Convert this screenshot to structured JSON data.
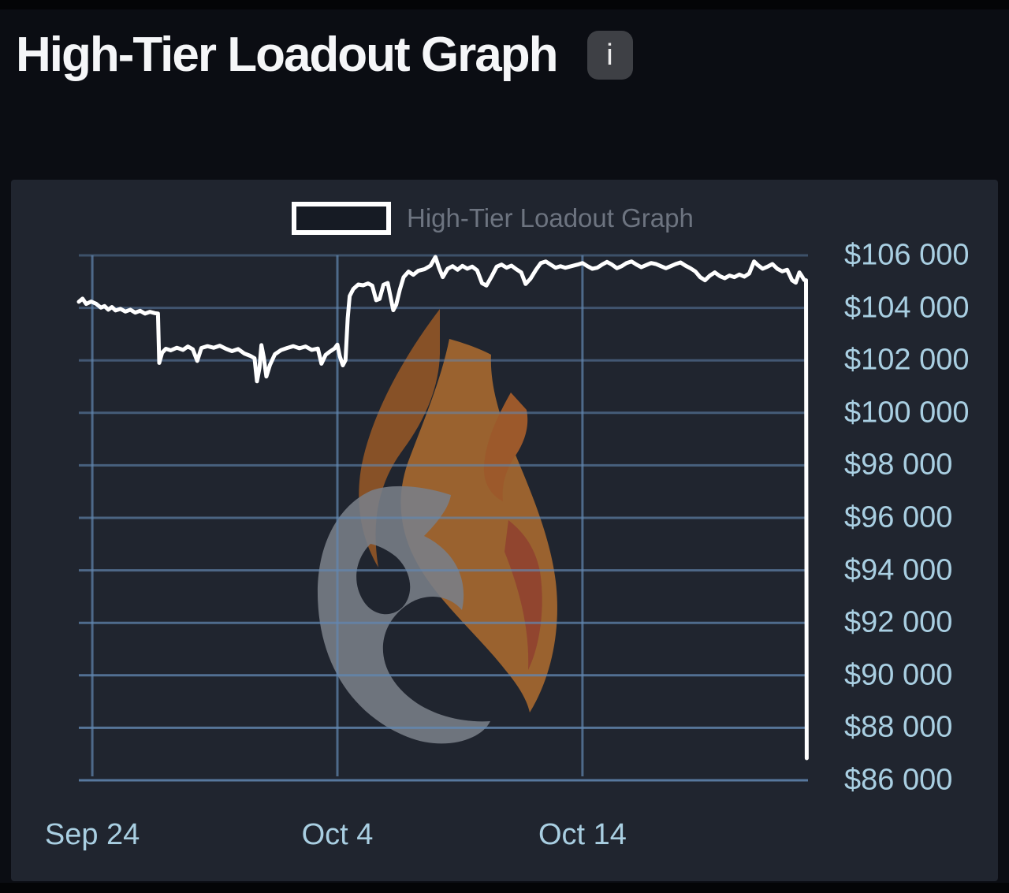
{
  "page": {
    "title": "High-Tier Loadout Graph",
    "info_button_label": "i"
  },
  "legend": {
    "label": "High-Tier Loadout Graph"
  },
  "colors": {
    "background": "#0b0d13",
    "panel": "#20252f",
    "line": "#ffffff",
    "grid": "#6287b1",
    "axis_label": "#a9cfe2",
    "legend_label": "#6d7480",
    "title_text": "#f5f6f8",
    "info_button_bg": "#3e4045",
    "flame_orange": "#a4672f",
    "flame_dark_orange": "#8f5527",
    "flame_red": "#99432f",
    "swirl_gray": "#81868f"
  },
  "chart_data": {
    "type": "line",
    "title": "High-Tier Loadout Graph",
    "xlabel": "",
    "ylabel": "",
    "grid": true,
    "legend_position": "top",
    "xlim": [
      0.45,
      30.2
    ],
    "ylim": [
      86000,
      106000
    ],
    "x_ticks": [
      {
        "label": "Sep 24",
        "day": 1
      },
      {
        "label": "Oct 4",
        "day": 11
      },
      {
        "label": "Oct 14",
        "day": 21
      }
    ],
    "y_ticks": [
      {
        "label": "$106 000",
        "value": 106000
      },
      {
        "label": "$104 000",
        "value": 104000
      },
      {
        "label": "$102 000",
        "value": 102000
      },
      {
        "label": "$100 000",
        "value": 100000
      },
      {
        "label": "$98 000",
        "value": 98000
      },
      {
        "label": "$96 000",
        "value": 96000
      },
      {
        "label": "$94 000",
        "value": 94000
      },
      {
        "label": "$92 000",
        "value": 92000
      },
      {
        "label": "$90 000",
        "value": 90000
      },
      {
        "label": "$88 000",
        "value": 88000
      },
      {
        "label": "$86 000",
        "value": 86000
      }
    ],
    "series": [
      {
        "name": "High-Tier Loadout Graph",
        "color": "#ffffff",
        "points": [
          [
            0.45,
            104230
          ],
          [
            0.6,
            104350
          ],
          [
            0.75,
            104150
          ],
          [
            0.95,
            104240
          ],
          [
            1.15,
            104160
          ],
          [
            1.35,
            104010
          ],
          [
            1.5,
            104070
          ],
          [
            1.65,
            103930
          ],
          [
            1.8,
            104030
          ],
          [
            1.95,
            103900
          ],
          [
            2.15,
            103960
          ],
          [
            2.35,
            103860
          ],
          [
            2.55,
            103930
          ],
          [
            2.75,
            103820
          ],
          [
            2.95,
            103890
          ],
          [
            3.15,
            103780
          ],
          [
            3.35,
            103850
          ],
          [
            3.55,
            103800
          ],
          [
            3.68,
            103780
          ],
          [
            3.73,
            101900
          ],
          [
            3.85,
            102290
          ],
          [
            4.0,
            102440
          ],
          [
            4.2,
            102380
          ],
          [
            4.45,
            102480
          ],
          [
            4.7,
            102400
          ],
          [
            4.9,
            102530
          ],
          [
            5.1,
            102420
          ],
          [
            5.28,
            101980
          ],
          [
            5.45,
            102470
          ],
          [
            5.7,
            102540
          ],
          [
            5.95,
            102480
          ],
          [
            6.2,
            102560
          ],
          [
            6.45,
            102440
          ],
          [
            6.7,
            102350
          ],
          [
            6.95,
            102430
          ],
          [
            7.2,
            102260
          ],
          [
            7.45,
            102170
          ],
          [
            7.62,
            102080
          ],
          [
            7.72,
            101200
          ],
          [
            7.82,
            101720
          ],
          [
            7.9,
            102580
          ],
          [
            8.0,
            102100
          ],
          [
            8.1,
            101380
          ],
          [
            8.25,
            101830
          ],
          [
            8.45,
            102230
          ],
          [
            8.7,
            102390
          ],
          [
            8.95,
            102470
          ],
          [
            9.2,
            102540
          ],
          [
            9.45,
            102460
          ],
          [
            9.7,
            102530
          ],
          [
            9.95,
            102400
          ],
          [
            10.2,
            102450
          ],
          [
            10.35,
            101870
          ],
          [
            10.52,
            102210
          ],
          [
            10.7,
            102340
          ],
          [
            10.88,
            102450
          ],
          [
            11.0,
            102600
          ],
          [
            11.1,
            102150
          ],
          [
            11.22,
            101810
          ],
          [
            11.33,
            102010
          ],
          [
            11.42,
            103600
          ],
          [
            11.5,
            104450
          ],
          [
            11.65,
            104720
          ],
          [
            11.85,
            104890
          ],
          [
            12.05,
            104860
          ],
          [
            12.25,
            104930
          ],
          [
            12.42,
            104850
          ],
          [
            12.58,
            104290
          ],
          [
            12.72,
            104340
          ],
          [
            12.88,
            104880
          ],
          [
            13.05,
            104950
          ],
          [
            13.28,
            103910
          ],
          [
            13.4,
            104120
          ],
          [
            13.55,
            104700
          ],
          [
            13.7,
            105170
          ],
          [
            13.9,
            105380
          ],
          [
            14.1,
            105260
          ],
          [
            14.3,
            105410
          ],
          [
            14.55,
            105470
          ],
          [
            14.8,
            105610
          ],
          [
            15.0,
            105940
          ],
          [
            15.15,
            105510
          ],
          [
            15.3,
            105170
          ],
          [
            15.5,
            105490
          ],
          [
            15.7,
            105590
          ],
          [
            15.9,
            105450
          ],
          [
            16.1,
            105600
          ],
          [
            16.3,
            105490
          ],
          [
            16.5,
            105570
          ],
          [
            16.7,
            105430
          ],
          [
            16.9,
            104940
          ],
          [
            17.08,
            104850
          ],
          [
            17.3,
            105210
          ],
          [
            17.5,
            105570
          ],
          [
            17.7,
            105650
          ],
          [
            17.9,
            105530
          ],
          [
            18.1,
            105610
          ],
          [
            18.3,
            105470
          ],
          [
            18.5,
            105350
          ],
          [
            18.68,
            104910
          ],
          [
            18.88,
            105110
          ],
          [
            19.1,
            105450
          ],
          [
            19.3,
            105710
          ],
          [
            19.5,
            105770
          ],
          [
            19.7,
            105650
          ],
          [
            19.9,
            105530
          ],
          [
            20.1,
            105590
          ],
          [
            20.3,
            105530
          ],
          [
            20.55,
            105590
          ],
          [
            20.8,
            105650
          ],
          [
            21.0,
            105710
          ],
          [
            21.2,
            105590
          ],
          [
            21.4,
            105490
          ],
          [
            21.6,
            105530
          ],
          [
            21.8,
            105650
          ],
          [
            22.0,
            105750
          ],
          [
            22.2,
            105650
          ],
          [
            22.4,
            105510
          ],
          [
            22.6,
            105590
          ],
          [
            22.8,
            105710
          ],
          [
            23.0,
            105770
          ],
          [
            23.2,
            105650
          ],
          [
            23.4,
            105550
          ],
          [
            23.6,
            105630
          ],
          [
            23.8,
            105710
          ],
          [
            24.0,
            105670
          ],
          [
            24.2,
            105590
          ],
          [
            24.4,
            105510
          ],
          [
            24.6,
            105590
          ],
          [
            24.8,
            105670
          ],
          [
            25.0,
            105730
          ],
          [
            25.2,
            105610
          ],
          [
            25.4,
            105510
          ],
          [
            25.6,
            105390
          ],
          [
            25.8,
            105170
          ],
          [
            26.0,
            105050
          ],
          [
            26.2,
            105230
          ],
          [
            26.4,
            105350
          ],
          [
            26.6,
            105210
          ],
          [
            26.8,
            105130
          ],
          [
            27.0,
            105230
          ],
          [
            27.2,
            105170
          ],
          [
            27.4,
            105270
          ],
          [
            27.6,
            105190
          ],
          [
            27.8,
            105310
          ],
          [
            28.0,
            105770
          ],
          [
            28.15,
            105630
          ],
          [
            28.35,
            105490
          ],
          [
            28.55,
            105570
          ],
          [
            28.75,
            105670
          ],
          [
            28.95,
            105490
          ],
          [
            29.15,
            105390
          ],
          [
            29.35,
            105450
          ],
          [
            29.55,
            105050
          ],
          [
            29.7,
            104960
          ],
          [
            29.85,
            105350
          ],
          [
            29.95,
            105210
          ],
          [
            30.05,
            105060
          ],
          [
            30.12,
            105050
          ],
          [
            30.15,
            86840
          ]
        ]
      }
    ]
  }
}
